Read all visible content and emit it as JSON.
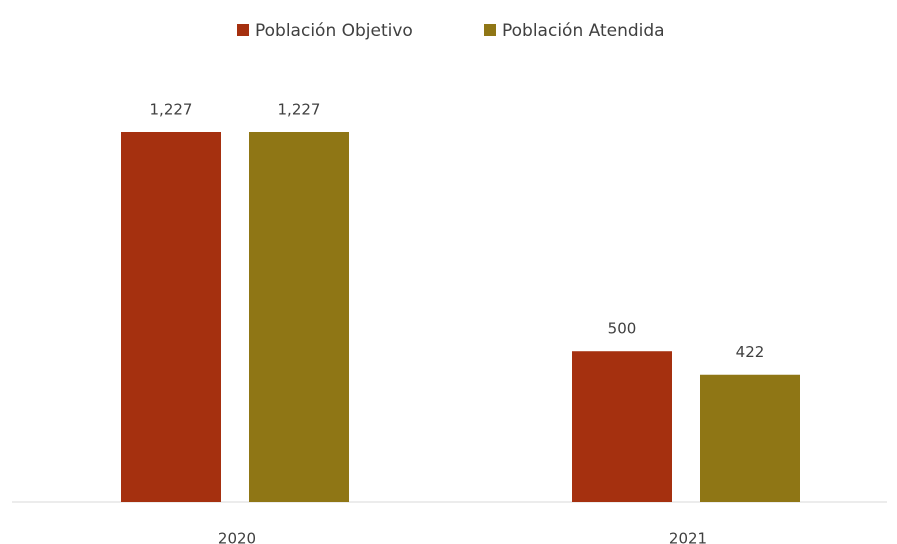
{
  "chart_data": {
    "type": "bar",
    "categories": [
      "2020",
      "2021"
    ],
    "series": [
      {
        "name": "Población Objetivo",
        "color": "#a5300f",
        "values": [
          1227,
          500
        ],
        "value_labels": [
          "1,227",
          "500"
        ]
      },
      {
        "name": "Población Atendida",
        "color": "#8f7615",
        "values": [
          1227,
          422
        ],
        "value_labels": [
          "1,227",
          "422"
        ]
      }
    ],
    "legend": "top"
  }
}
